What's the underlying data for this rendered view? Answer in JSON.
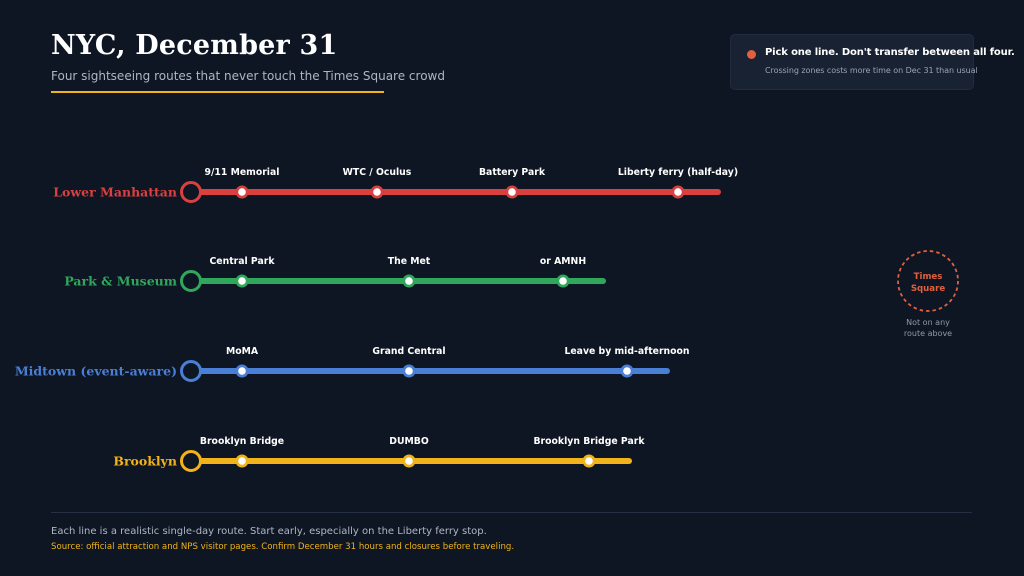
{
  "header": {
    "title": "NYC, December 31",
    "subtitle": "Four sightseeing routes that never touch the Times Square crowd"
  },
  "note": {
    "headline": "Pick one line. Don't transfer between all four.",
    "detail": "Crossing zones costs more time on Dec 31 than usual",
    "dot_color": "#e0603f"
  },
  "routes": [
    {
      "name": "Lower Manhattan",
      "color": "#d9403f",
      "stops": [
        "9/11 Memorial",
        "WTC / Oculus",
        "Battery Park",
        "Liberty ferry (half-day)"
      ]
    },
    {
      "name": "Park & Museum",
      "color": "#2fa85b",
      "stops": [
        "Central Park",
        "The Met",
        "or AMNH"
      ]
    },
    {
      "name": "Midtown (event-aware)",
      "color": "#4a7fd6",
      "stops": [
        "MoMA",
        "Grand Central",
        "Leave by mid-afternoon"
      ]
    },
    {
      "name": "Brooklyn",
      "color": "#f1b319",
      "stops": [
        "Brooklyn Bridge",
        "DUMBO",
        "Brooklyn Bridge Park"
      ]
    }
  ],
  "avoid": {
    "label_line1": "Times",
    "label_line2": "Square",
    "caption_line1": "Not on any",
    "caption_line2": "route above",
    "color": "#e0603f"
  },
  "footer": {
    "note": "Each line is a realistic single-day route. Start early, especially on the Liberty ferry stop.",
    "source": "Source: official attraction and NPS visitor pages. Confirm December 31 hours and closures before traveling."
  }
}
